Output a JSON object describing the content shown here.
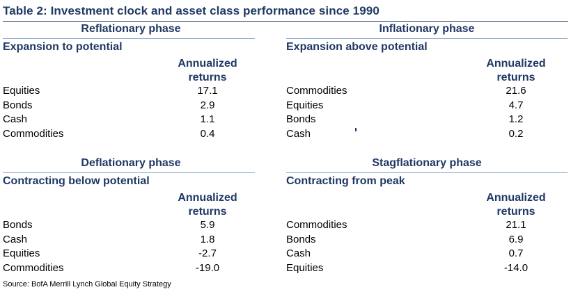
{
  "title": "Table 2: Investment clock and asset class performance since 1990",
  "quadrants": [
    {
      "phase": "Reflationary phase",
      "subtitle": "Expansion to potential",
      "header_line1": "Annualized",
      "header_line2": "returns",
      "rows": [
        {
          "asset": "Equities",
          "value": "17.1"
        },
        {
          "asset": "Bonds",
          "value": "2.9"
        },
        {
          "asset": "Cash",
          "value": "1.1"
        },
        {
          "asset": "Commodities",
          "value": "0.4"
        }
      ]
    },
    {
      "phase": "Inflationary phase",
      "subtitle": "Expansion above potential",
      "header_line1": "Annualized",
      "header_line2": "returns",
      "rows": [
        {
          "asset": "Commodities",
          "value": "21.6"
        },
        {
          "asset": "Equities",
          "value": "4.7"
        },
        {
          "asset": "Bonds",
          "value": "1.2"
        },
        {
          "asset": "Cash",
          "value": "0.2"
        }
      ]
    },
    {
      "phase": "Deflationary phase",
      "subtitle": "Contracting below potential",
      "header_line1": "Annualized",
      "header_line2": "returns",
      "rows": [
        {
          "asset": "Bonds",
          "value": "5.9"
        },
        {
          "asset": "Cash",
          "value": "1.8"
        },
        {
          "asset": "Equities",
          "value": "-2.7"
        },
        {
          "asset": "Commodities",
          "value": "-19.0"
        }
      ]
    },
    {
      "phase": "Stagflationary phase",
      "subtitle": "Contracting from peak",
      "header_line1": "Annualized",
      "header_line2": "returns",
      "rows": [
        {
          "asset": "Commodities",
          "value": "21.1"
        },
        {
          "asset": "Bonds",
          "value": "6.9"
        },
        {
          "asset": "Cash",
          "value": "0.7"
        },
        {
          "asset": "Equities",
          "value": "-14.0"
        }
      ]
    }
  ],
  "source": "Source: BofA Merrill Lynch Global Equity Strategy",
  "colors": {
    "heading": "#1f3864",
    "rule": "#8ea9c8",
    "text": "#000000"
  }
}
